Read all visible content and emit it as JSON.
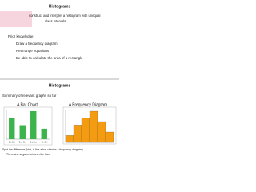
{
  "slides": [
    {
      "title": "Histograms",
      "objective": [
        "construct and interpret a histogram with unequal",
        "class intervals."
      ],
      "prior_heading": "Prior knowledge:",
      "prior_items": [
        "Draw a frequency diagram",
        "Rearrange equations",
        "Be able to calculate the area of a rectangle"
      ]
    },
    {
      "title": "Histograms",
      "summary": "Summary of relevant graphs so far",
      "charts": [
        {
          "type": "bar",
          "title": "A Bar Chart",
          "color": "#3cb44b",
          "gap": true,
          "categories": [
            "1st Set",
            "2nd Set",
            "3rd Set",
            "4th Set"
          ],
          "values": [
            6,
            4,
            8,
            3
          ]
        },
        {
          "type": "bar",
          "title": "A Frequency Diagram",
          "color": "#f39c12",
          "gap": false,
          "values": [
            2,
            5,
            7,
            9,
            6,
            3
          ]
        }
      ],
      "notes": [
        "Spot the difference (hint, is this a bar chart or a frequency diagram)",
        "There are no gaps between the bars"
      ]
    }
  ]
}
